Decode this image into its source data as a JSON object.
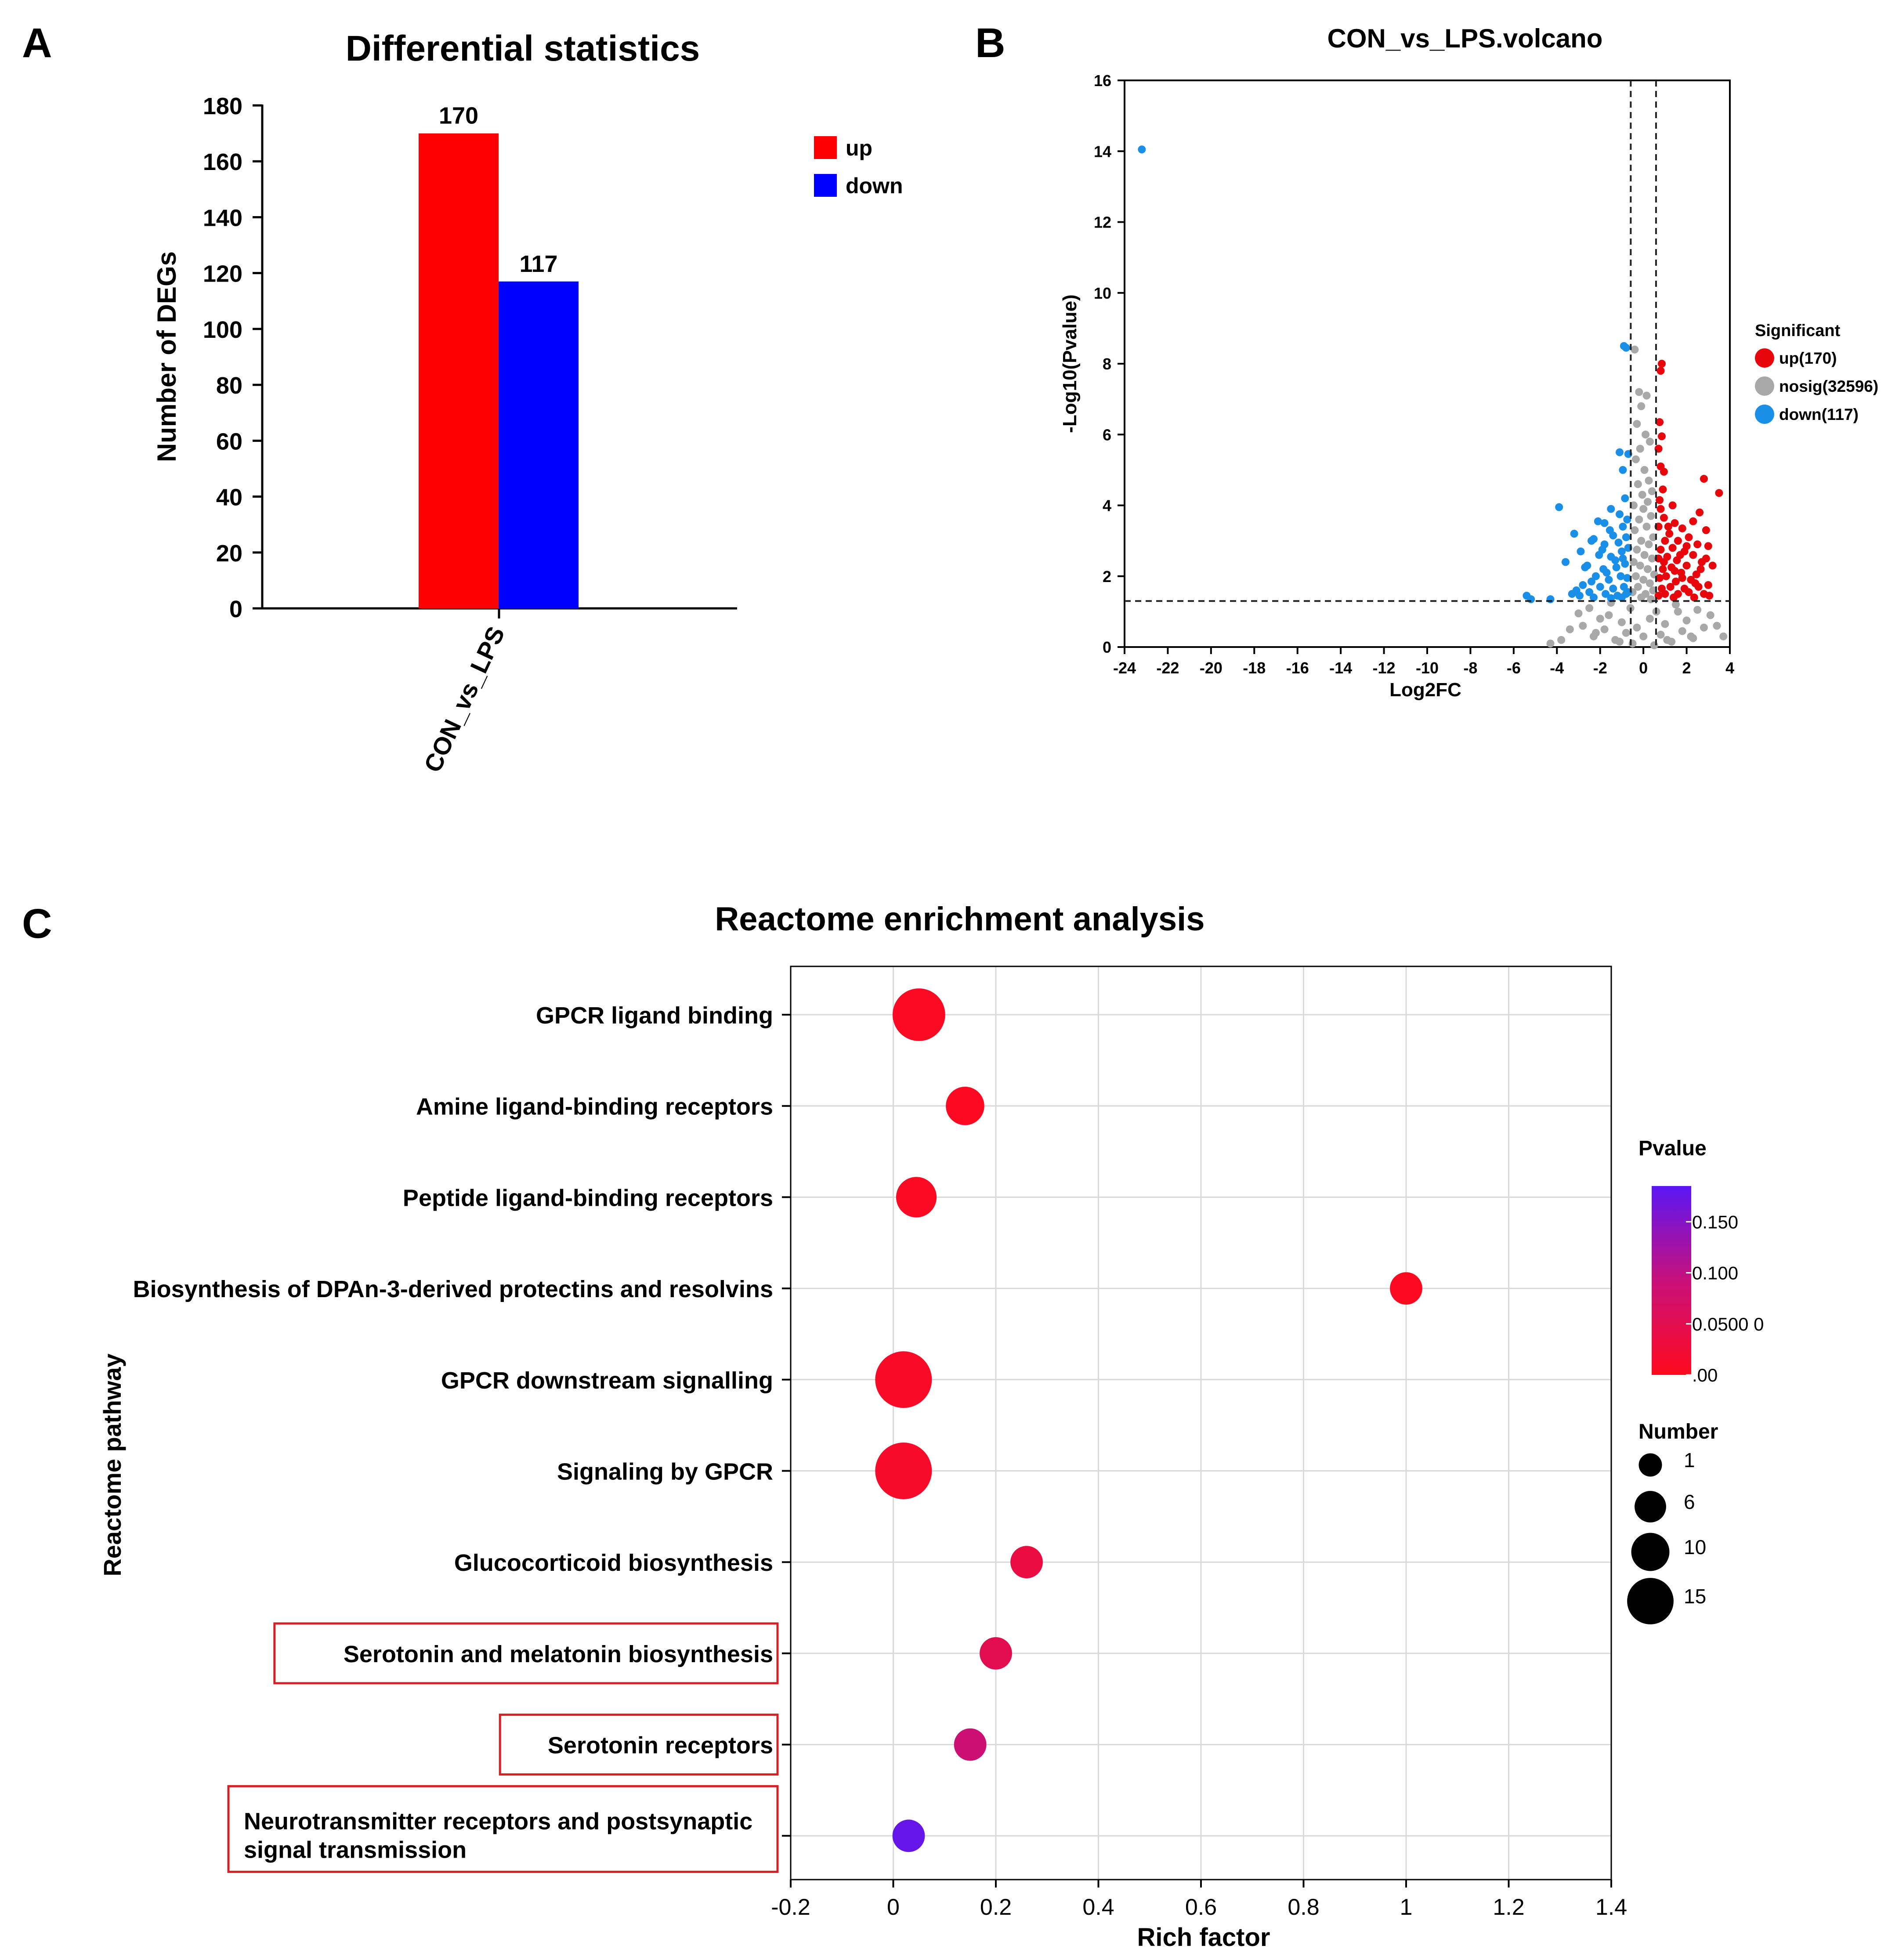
{
  "colors": {
    "up": "#ff0000",
    "down": "#0000ff",
    "volcano_up": "#e8060d",
    "volcano_nosig": "#a8a8a8",
    "volcano_down": "#1a8fe8",
    "highlight_box": "#d42026",
    "grid": "#d9d9d9",
    "pvalue_low": "#ff0a1e",
    "pvalue_high": "#5a16f5"
  },
  "chart_data": [
    {
      "panel": "A",
      "type": "bar",
      "title": "Differential statistics",
      "xlabel": "",
      "ylabel": "Number of DEGs",
      "categories": [
        "CON_vs_LPS"
      ],
      "series": [
        {
          "name": "up",
          "values": [
            170
          ]
        },
        {
          "name": "down",
          "values": [
            117
          ]
        }
      ],
      "data_labels": [
        "170",
        "117"
      ],
      "ylim": [
        0,
        180
      ],
      "yticks": [
        0,
        20,
        40,
        60,
        80,
        100,
        120,
        140,
        160,
        180
      ],
      "legend": {
        "position": "top-right",
        "entries": [
          "up",
          "down"
        ]
      },
      "grid": false
    },
    {
      "panel": "B",
      "type": "scatter",
      "title": "CON_vs_LPS.volcano",
      "xlabel": "Log2FC",
      "ylabel": "-Log10(Pvalue)",
      "xlim": [
        -24,
        4
      ],
      "ylim": [
        0,
        16
      ],
      "xticks": [
        -24,
        -22,
        -20,
        -18,
        -16,
        -14,
        -12,
        -10,
        -8,
        -6,
        -4,
        -2,
        0,
        2,
        4
      ],
      "yticks": [
        0,
        2,
        4,
        6,
        8,
        10,
        12,
        14,
        16
      ],
      "threshold_lines": {
        "x": [
          -0.585,
          0.585
        ],
        "y": 1.3
      },
      "legend": {
        "title": "Significant",
        "position": "right",
        "entries": [
          "up(170)",
          "nosig(32596)",
          "down(117)"
        ]
      },
      "series": [
        {
          "name": "down",
          "count": 117,
          "points": [
            [
              -23.2,
              14.05
            ],
            [
              -0.9,
              8.5
            ],
            [
              -0.8,
              8.45
            ],
            [
              -0.7,
              5.45
            ],
            [
              -1.1,
              5.5
            ],
            [
              -0.95,
              5.0
            ],
            [
              -3.9,
              3.95
            ],
            [
              -1.5,
              3.9
            ],
            [
              -1.1,
              3.75
            ],
            [
              -0.85,
              4.2
            ],
            [
              -2.1,
              3.55
            ],
            [
              -1.55,
              3.3
            ],
            [
              -0.95,
              3.4
            ],
            [
              -3.2,
              3.2
            ],
            [
              -2.4,
              3.0
            ],
            [
              -1.8,
              2.9
            ],
            [
              -1.15,
              2.95
            ],
            [
              -0.8,
              3.1
            ],
            [
              -2.9,
              2.7
            ],
            [
              -2.05,
              2.6
            ],
            [
              -1.5,
              2.55
            ],
            [
              -1.0,
              2.7
            ],
            [
              -0.7,
              2.8
            ],
            [
              -3.6,
              2.4
            ],
            [
              -2.6,
              2.3
            ],
            [
              -1.85,
              2.2
            ],
            [
              -1.25,
              2.25
            ],
            [
              -0.85,
              2.35
            ],
            [
              -2.2,
              2.0
            ],
            [
              -1.6,
              1.9
            ],
            [
              -1.05,
              2.0
            ],
            [
              -0.75,
              1.95
            ],
            [
              -2.8,
              1.75
            ],
            [
              -2.0,
              1.7
            ],
            [
              -1.4,
              1.65
            ],
            [
              -0.9,
              1.7
            ],
            [
              -2.5,
              1.55
            ],
            [
              -1.75,
              1.5
            ],
            [
              -1.2,
              1.45
            ],
            [
              -0.8,
              1.5
            ],
            [
              -5.4,
              1.45
            ],
            [
              -5.2,
              1.35
            ],
            [
              -4.3,
              1.35
            ],
            [
              -3.3,
              1.5
            ],
            [
              -2.95,
              1.45
            ],
            [
              -2.3,
              1.4
            ],
            [
              -1.5,
              1.38
            ],
            [
              -1.0,
              1.4
            ],
            [
              -3.1,
              1.6
            ],
            [
              -2.4,
              1.85
            ],
            [
              -1.7,
              2.1
            ],
            [
              -1.3,
              2.45
            ],
            [
              -0.95,
              2.5
            ],
            [
              -1.9,
              2.75
            ],
            [
              -2.3,
              3.05
            ],
            [
              -1.4,
              3.15
            ],
            [
              -0.75,
              3.6
            ],
            [
              -1.8,
              3.5
            ],
            [
              -2.7,
              2.25
            ],
            [
              -0.7,
              1.55
            ]
          ]
        },
        {
          "name": "up",
          "count": 170,
          "points": [
            [
              0.85,
              8.0
            ],
            [
              0.8,
              7.8
            ],
            [
              0.75,
              6.35
            ],
            [
              0.85,
              5.95
            ],
            [
              0.7,
              5.6
            ],
            [
              0.8,
              5.1
            ],
            [
              0.95,
              4.95
            ],
            [
              2.8,
              4.75
            ],
            [
              3.5,
              4.35
            ],
            [
              0.9,
              4.45
            ],
            [
              0.75,
              4.15
            ],
            [
              1.35,
              4.0
            ],
            [
              2.6,
              3.8
            ],
            [
              1.45,
              3.5
            ],
            [
              2.3,
              3.55
            ],
            [
              0.95,
              3.65
            ],
            [
              1.8,
              3.35
            ],
            [
              2.9,
              3.3
            ],
            [
              1.2,
              3.2
            ],
            [
              0.7,
              3.4
            ],
            [
              2.1,
              3.1
            ],
            [
              1.6,
              3.0
            ],
            [
              1.0,
              3.0
            ],
            [
              2.5,
              2.9
            ],
            [
              3.0,
              2.85
            ],
            [
              1.35,
              2.8
            ],
            [
              0.8,
              2.75
            ],
            [
              1.9,
              2.7
            ],
            [
              2.3,
              2.6
            ],
            [
              1.1,
              2.55
            ],
            [
              0.7,
              2.5
            ],
            [
              1.55,
              2.45
            ],
            [
              2.7,
              2.4
            ],
            [
              3.2,
              2.3
            ],
            [
              2.0,
              2.3
            ],
            [
              1.3,
              2.25
            ],
            [
              0.9,
              2.2
            ],
            [
              1.75,
              2.1
            ],
            [
              2.45,
              2.05
            ],
            [
              1.05,
              2.0
            ],
            [
              0.75,
              1.95
            ],
            [
              2.2,
              1.9
            ],
            [
              1.5,
              1.85
            ],
            [
              3.0,
              1.75
            ],
            [
              3.05,
              1.45
            ],
            [
              2.55,
              1.7
            ],
            [
              1.9,
              1.65
            ],
            [
              1.25,
              1.7
            ],
            [
              0.85,
              1.65
            ],
            [
              2.1,
              1.55
            ],
            [
              1.6,
              1.5
            ],
            [
              1.0,
              1.5
            ],
            [
              2.8,
              1.5
            ],
            [
              0.7,
              1.45
            ],
            [
              1.4,
              1.4
            ],
            [
              2.35,
              1.4
            ],
            [
              1.8,
              1.95
            ],
            [
              2.65,
              2.2
            ],
            [
              1.15,
              3.4
            ],
            [
              2.0,
              2.85
            ],
            [
              0.8,
              3.9
            ],
            [
              1.7,
              2.6
            ],
            [
              2.9,
              2.5
            ],
            [
              1.45,
              2.15
            ],
            [
              0.95,
              2.4
            ],
            [
              2.4,
              1.8
            ]
          ]
        },
        {
          "name": "nosig",
          "count": 32596,
          "points": [
            [
              -0.4,
              8.4
            ],
            [
              -0.2,
              7.2
            ],
            [
              -0.1,
              6.8
            ],
            [
              0.15,
              7.1
            ],
            [
              -0.3,
              6.3
            ],
            [
              0.1,
              6.0
            ],
            [
              -0.15,
              5.6
            ],
            [
              0.3,
              5.8
            ],
            [
              -0.35,
              5.3
            ],
            [
              0.05,
              5.0
            ],
            [
              0.25,
              4.7
            ],
            [
              -0.25,
              4.6
            ],
            [
              0.4,
              4.4
            ],
            [
              -0.05,
              4.3
            ],
            [
              0.2,
              4.1
            ],
            [
              -0.45,
              4.0
            ],
            [
              0.0,
              3.9
            ],
            [
              0.35,
              3.7
            ],
            [
              -0.2,
              3.6
            ],
            [
              0.15,
              3.4
            ],
            [
              -0.4,
              3.3
            ],
            [
              0.45,
              3.1
            ],
            [
              -0.1,
              3.0
            ],
            [
              0.25,
              2.9
            ],
            [
              -0.3,
              2.75
            ],
            [
              0.05,
              2.6
            ],
            [
              0.4,
              2.5
            ],
            [
              -0.45,
              2.4
            ],
            [
              -0.15,
              2.3
            ],
            [
              0.2,
              2.2
            ],
            [
              0.5,
              2.05
            ],
            [
              -0.35,
              2.0
            ],
            [
              0.0,
              1.9
            ],
            [
              0.3,
              1.8
            ],
            [
              -0.25,
              1.7
            ],
            [
              0.45,
              1.6
            ],
            [
              -0.5,
              1.55
            ],
            [
              0.1,
              1.5
            ],
            [
              -0.1,
              1.4
            ],
            [
              0.35,
              1.35
            ],
            [
              -1.5,
              1.25
            ],
            [
              1.5,
              1.2
            ],
            [
              -2.5,
              1.1
            ],
            [
              2.5,
              1.05
            ],
            [
              -3.0,
              0.95
            ],
            [
              3.1,
              0.9
            ],
            [
              -2.0,
              0.8
            ],
            [
              2.0,
              0.75
            ],
            [
              -1.0,
              0.7
            ],
            [
              1.0,
              0.65
            ],
            [
              -2.8,
              0.6
            ],
            [
              2.8,
              0.55
            ],
            [
              -1.8,
              0.5
            ],
            [
              1.8,
              0.45
            ],
            [
              -0.8,
              0.4
            ],
            [
              0.8,
              0.35
            ],
            [
              -2.3,
              0.3
            ],
            [
              2.3,
              0.25
            ],
            [
              -1.3,
              0.2
            ],
            [
              1.3,
              0.15
            ],
            [
              -0.5,
              0.1
            ],
            [
              0.5,
              0.05
            ],
            [
              -3.4,
              0.5
            ],
            [
              3.4,
              0.6
            ],
            [
              -1.6,
              0.9
            ],
            [
              1.6,
              1.0
            ],
            [
              -0.6,
              1.1
            ],
            [
              0.6,
              1.0
            ],
            [
              -2.2,
              0.4
            ],
            [
              2.2,
              0.3
            ],
            [
              -1.1,
              0.15
            ],
            [
              1.1,
              0.2
            ],
            [
              0.0,
              0.3
            ],
            [
              -0.3,
              0.55
            ],
            [
              0.3,
              0.8
            ],
            [
              -3.8,
              0.2
            ],
            [
              3.7,
              0.3
            ],
            [
              -4.3,
              0.1
            ]
          ]
        }
      ],
      "grid": false
    },
    {
      "panel": "C",
      "type": "scatter",
      "title": "Reactome enrichment analysis",
      "xlabel": "Rich factor",
      "ylabel": "Reactome pathway",
      "xlim": [
        -0.2,
        1.4
      ],
      "xticks": [
        "-0.2",
        "0",
        "0.2",
        "0.4",
        "0.6",
        "0.8",
        "1",
        "1.2",
        "1.4"
      ],
      "grid": true,
      "pathways": [
        {
          "label": "GPCR ligand binding",
          "line2": "",
          "rich_factor": 0.05,
          "number": 13,
          "pvalue": 0.005,
          "highlight": false
        },
        {
          "label": "Amine ligand-binding receptors",
          "line2": "",
          "rich_factor": 0.14,
          "number": 6,
          "pvalue": 0.004,
          "highlight": false
        },
        {
          "label": "Peptide ligand-binding receptors",
          "line2": "",
          "rich_factor": 0.045,
          "number": 7,
          "pvalue": 0.006,
          "highlight": false
        },
        {
          "label": "Biosynthesis of DPAn-3-derived protectins and resolvins",
          "line2": "",
          "rich_factor": 1.0,
          "number": 3,
          "pvalue": 0.003,
          "highlight": false
        },
        {
          "label": "GPCR downstream signalling",
          "line2": "",
          "rich_factor": 0.02,
          "number": 15,
          "pvalue": 0.01,
          "highlight": false
        },
        {
          "label": "Signaling by GPCR",
          "line2": "",
          "rich_factor": 0.02,
          "number": 15,
          "pvalue": 0.012,
          "highlight": false
        },
        {
          "label": "Glucocorticoid biosynthesis",
          "line2": "",
          "rich_factor": 0.26,
          "number": 3,
          "pvalue": 0.035,
          "highlight": false
        },
        {
          "label": "Serotonin and melatonin biosynthesis",
          "line2": "",
          "rich_factor": 0.2,
          "number": 3,
          "pvalue": 0.05,
          "highlight": true
        },
        {
          "label": "Serotonin receptors",
          "line2": "",
          "rich_factor": 0.15,
          "number": 3,
          "pvalue": 0.085,
          "highlight": true
        },
        {
          "label": "Neurotransmitter receptors and postsynaptic",
          "line2": "signal transmission",
          "rich_factor": 0.03,
          "number": 3,
          "pvalue": 0.175,
          "highlight": true
        }
      ],
      "color_legend": {
        "title": "Pvalue",
        "min": 0,
        "max": 0.185,
        "ticks": [
          "0.150",
          "0.100",
          "0.0500 0",
          ".00"
        ],
        "tick_values": [
          0.15,
          0.1,
          0.05,
          0.0
        ]
      },
      "size_legend": {
        "title": "Number",
        "entries": [
          "1",
          "6",
          "10",
          "15"
        ],
        "values": [
          1,
          6,
          10,
          15
        ]
      }
    }
  ]
}
